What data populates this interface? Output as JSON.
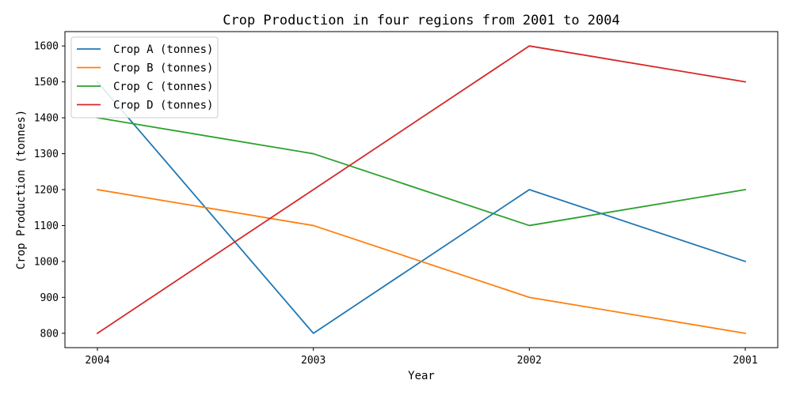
{
  "chart_data": {
    "type": "line",
    "title": "Crop Production in four regions from 2001 to 2004",
    "xlabel": "Year",
    "ylabel": "Crop Production (tonnes)",
    "categories": [
      "2004",
      "2003",
      "2002",
      "2001"
    ],
    "yticks": [
      800,
      900,
      1000,
      1100,
      1200,
      1300,
      1400,
      1500,
      1600
    ],
    "ylim": [
      760,
      1640
    ],
    "grid": false,
    "legend_position": "top-left",
    "series": [
      {
        "name": "Crop A (tonnes)",
        "color": "#1f77b4",
        "values": [
          1500,
          800,
          1200,
          1000
        ]
      },
      {
        "name": "Crop B (tonnes)",
        "color": "#ff7f0e",
        "values": [
          1200,
          1100,
          900,
          800
        ]
      },
      {
        "name": "Crop C (tonnes)",
        "color": "#2ca02c",
        "values": [
          1400,
          1300,
          1100,
          1200
        ]
      },
      {
        "name": "Crop D (tonnes)",
        "color": "#d62728",
        "values": [
          800,
          1200,
          1600,
          1500
        ]
      }
    ]
  }
}
